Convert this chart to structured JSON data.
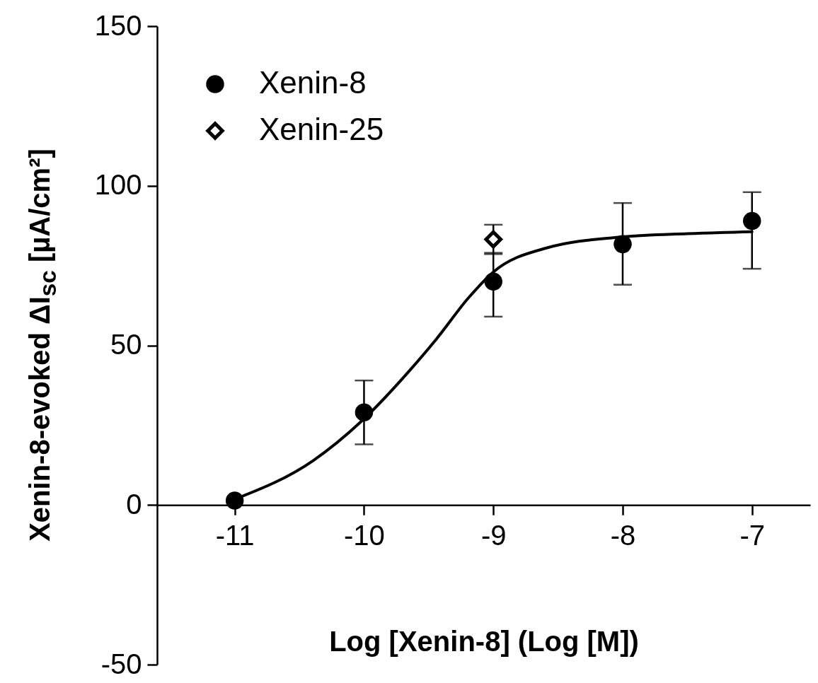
{
  "chart_data": {
    "type": "scatter",
    "xlabel": "Log [Xenin-8] (Log [M])",
    "ylabel": "Xenin-8-evoked ΔI$_{sc}$ [µA/cm²]",
    "xlim": [
      -11.6,
      -6.55
    ],
    "xticks": [
      -11,
      -10,
      -9,
      -8,
      -7
    ],
    "ylim": [
      -50,
      150
    ],
    "yticks": [
      -50,
      0,
      50,
      100,
      150
    ],
    "grid": false,
    "legend": "top left",
    "series": [
      {
        "name": "Xenin-8",
        "marker": "circle",
        "color": "#000000",
        "x": [
          -11,
          -10,
          -9,
          -8,
          -7
        ],
        "values": [
          1.4,
          29,
          70,
          81.7,
          89
        ],
        "errors": [
          null,
          10,
          [
            59,
            79
          ],
          [
            69,
            94.6
          ],
          [
            74,
            98
          ]
        ]
      },
      {
        "name": "Xenin-25",
        "marker": "diamond",
        "color": "#000000",
        "x": [
          -9
        ],
        "values": [
          83.2
        ],
        "errors": [
          4.6
        ]
      },
      {
        "type": "line",
        "marker": "none",
        "color": "#000000",
        "x": [
          -11,
          -10.39,
          -10,
          -9.65,
          -9.44,
          -9.19,
          -9,
          -8.59,
          -8,
          -7.5,
          -7
        ],
        "values": [
          1.8,
          14,
          27,
          42,
          52,
          65,
          73,
          80.5,
          84,
          85,
          85.6
        ]
      }
    ]
  }
}
